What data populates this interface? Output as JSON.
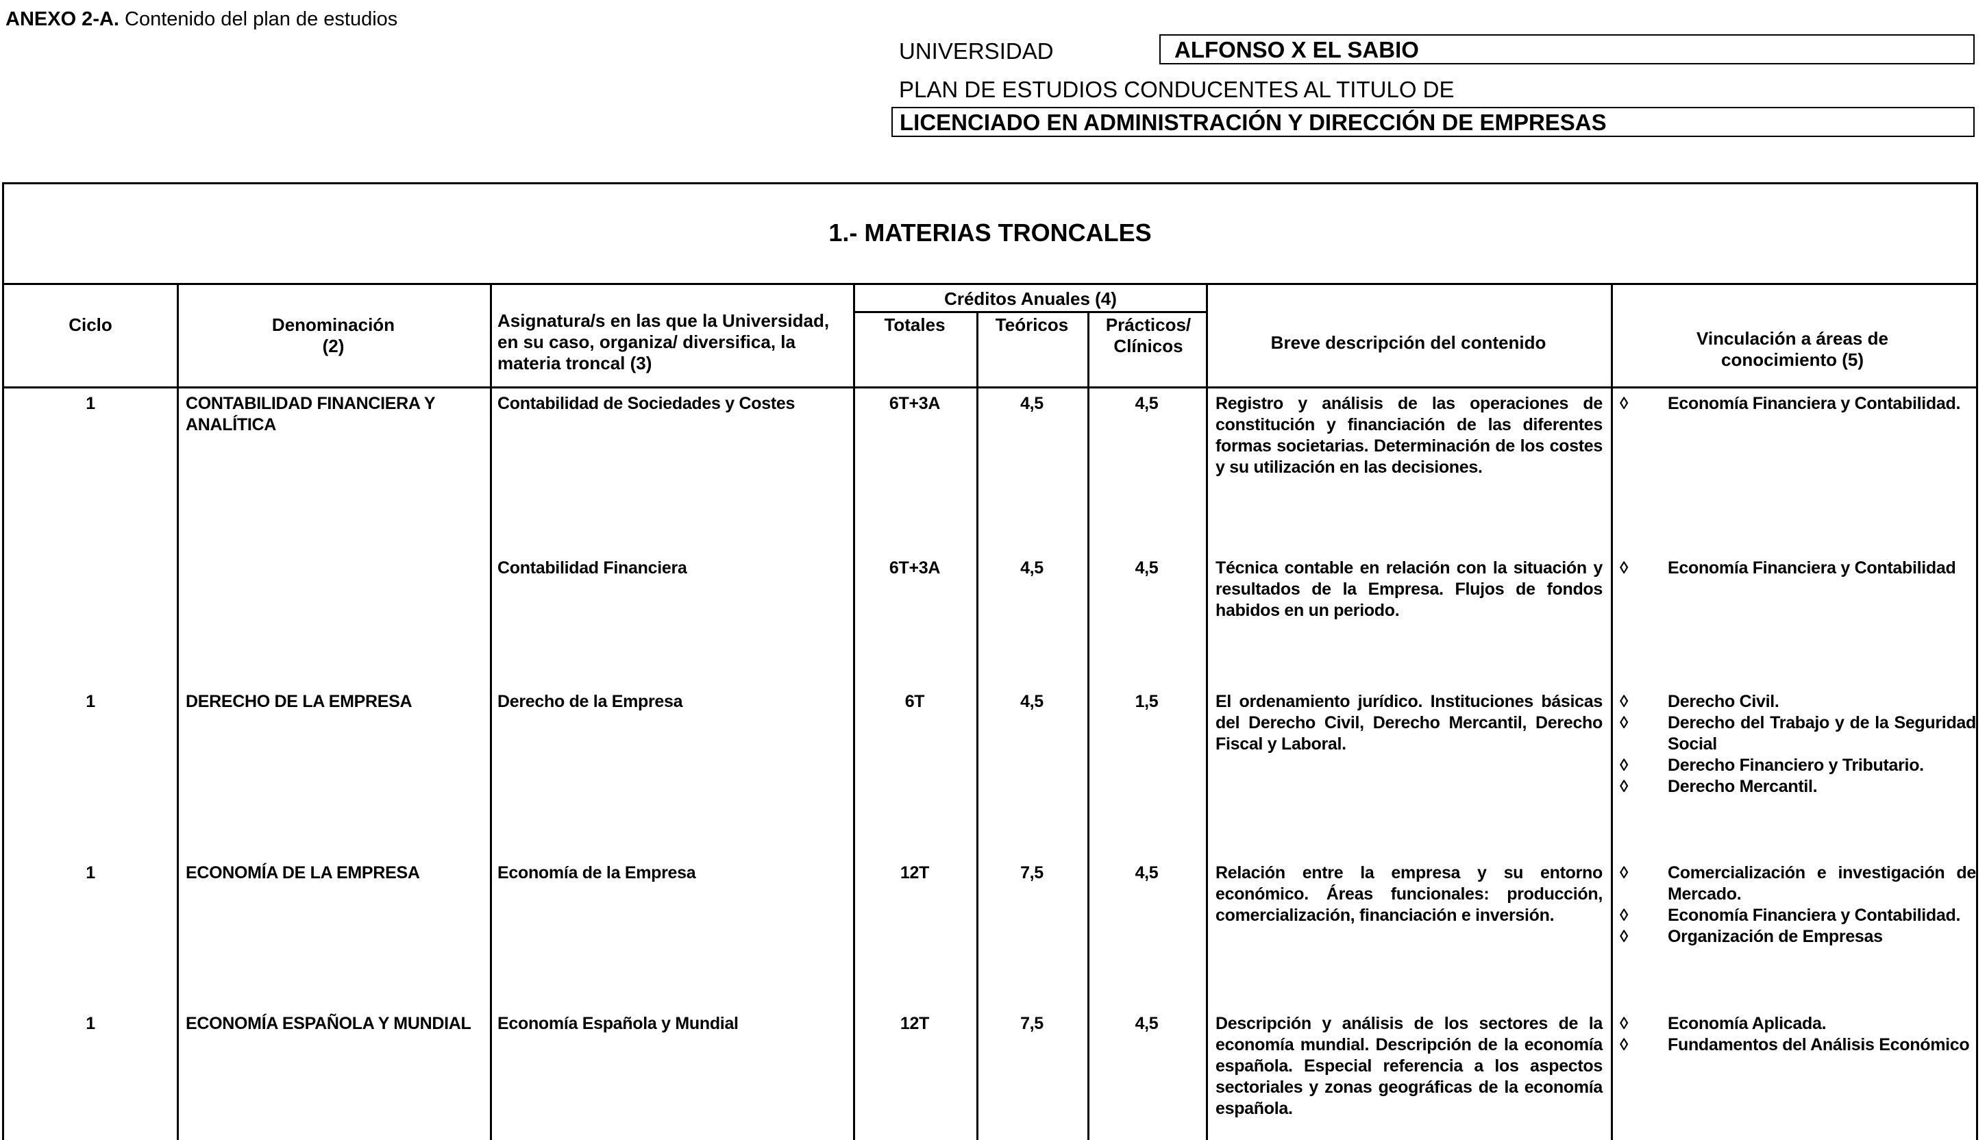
{
  "header": {
    "anexo_bold": "ANEXO 2-A.",
    "anexo_text": " Contenido del plan de estudios",
    "universidad_label": "UNIVERSIDAD",
    "universidad": "ALFONSO X EL SABIO",
    "plan_label": "PLAN DE ESTUDIOS CONDUCENTES AL TITULO DE",
    "titulo": "LICENCIADO EN ADMINISTRACIÓN Y DIRECCIÓN DE EMPRESAS"
  },
  "table": {
    "title": "1.- MATERIAS TRONCALES",
    "columns": {
      "ciclo": "Ciclo",
      "denominacion": "Denominación",
      "denominacion_note": "(2)",
      "asignatura": "Asignatura/s en las que la Universidad, en su caso, organiza/ diversifica, la materia troncal (3)",
      "creditos": "Créditos Anuales (4)",
      "totales": "Totales",
      "teoricos": "Teóricos",
      "practicos": "Prácticos/ Clínicos",
      "descripcion": "Breve descripción del contenido",
      "vinculacion": "Vinculación a áreas de conocimiento (5)"
    },
    "rows": [
      {
        "ciclo": "1",
        "denominacion": "CONTABILIDAD FINANCIERA Y ANALÍTICA",
        "asignatura": "Contabilidad de Sociedades y Costes",
        "totales": "6T+3A",
        "teoricos": "4,5",
        "practicos": "4,5",
        "descripcion": "Registro y análisis de las operaciones de constitución y financiación de las diferentes formas societarias. Determinación de los costes y su utilización en las decisiones.",
        "vinculacion": [
          "Economía Financiera y Contabilidad."
        ]
      },
      {
        "ciclo": "",
        "denominacion": "",
        "asignatura": "Contabilidad Financiera",
        "totales": "6T+3A",
        "teoricos": "4,5",
        "practicos": "4,5",
        "descripcion": "Técnica contable en relación con la situación y resultados de la Empresa. Flujos de fondos habidos en un periodo.",
        "vinculacion": [
          "Economía Financiera y Contabilidad"
        ]
      },
      {
        "ciclo": "1",
        "denominacion": "DERECHO DE LA EMPRESA",
        "asignatura": "Derecho de la Empresa",
        "totales": "6T",
        "teoricos": "4,5",
        "practicos": "1,5",
        "descripcion": "El ordenamiento jurídico. Instituciones básicas del Derecho Civil, Derecho Mercantil, Derecho Fiscal y Laboral.",
        "vinculacion": [
          "Derecho Civil.",
          "Derecho del Trabajo y de la Seguridad Social",
          "Derecho Financiero y Tributario.",
          "Derecho Mercantil."
        ]
      },
      {
        "ciclo": "1",
        "denominacion": "ECONOMÍA DE LA EMPRESA",
        "asignatura": "Economía de la Empresa",
        "totales": "12T",
        "teoricos": "7,5",
        "practicos": "4,5",
        "descripcion": "Relación entre la empresa y su entorno económico. Áreas funcionales: producción, comercialización, financiación e inversión.",
        "vinculacion": [
          "Comercialización e investigación de Mercado.",
          "Economía Financiera y Contabilidad.",
          "Organización de Empresas"
        ]
      },
      {
        "ciclo": "1",
        "denominacion": "ECONOMÍA ESPAÑOLA Y MUNDIAL",
        "asignatura": "Economía Española y Mundial",
        "totales": "12T",
        "teoricos": "7,5",
        "practicos": "4,5",
        "descripcion": "Descripción y análisis de los sectores de la economía mundial. Descripción de la economía española. Especial referencia a los aspectos sectoriales y zonas geográficas de la economía española.",
        "vinculacion": [
          "Economía Aplicada.",
          "Fundamentos del Análisis Económico"
        ]
      }
    ]
  }
}
